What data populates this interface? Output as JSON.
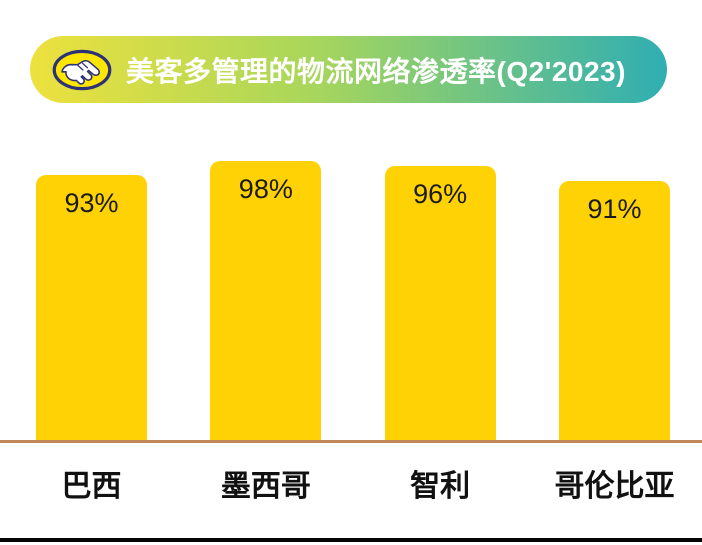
{
  "header": {
    "title": "美客多管理的物流网络渗透率(Q2'2023)",
    "logo": "mercadolibre-handshake",
    "gradient": [
      "#EDE13D",
      "#A7D65C",
      "#2FAEB3"
    ],
    "logo_colors": {
      "oval_fill": "#FFE600",
      "oval_stroke": "#2D3277",
      "hands": "#FFFFFF"
    }
  },
  "chart_data": {
    "type": "bar",
    "title": "美客多管理的物流网络渗透率(Q2'2023)",
    "categories": [
      "巴西",
      "墨西哥",
      "智利",
      "哥伦比亚"
    ],
    "values": [
      93,
      98,
      96,
      91
    ],
    "unit": "%",
    "xlabel": "",
    "ylabel": "",
    "ylim": [
      0,
      100
    ],
    "grid": false,
    "legend": "none",
    "value_labels_position": "inside-top",
    "bar_color": "#FFD205",
    "value_label_color": "#1B1B1B",
    "axis_line_color": "#C1875A",
    "bottom_rule_color": "#050505",
    "background": "#FFFFFF"
  }
}
